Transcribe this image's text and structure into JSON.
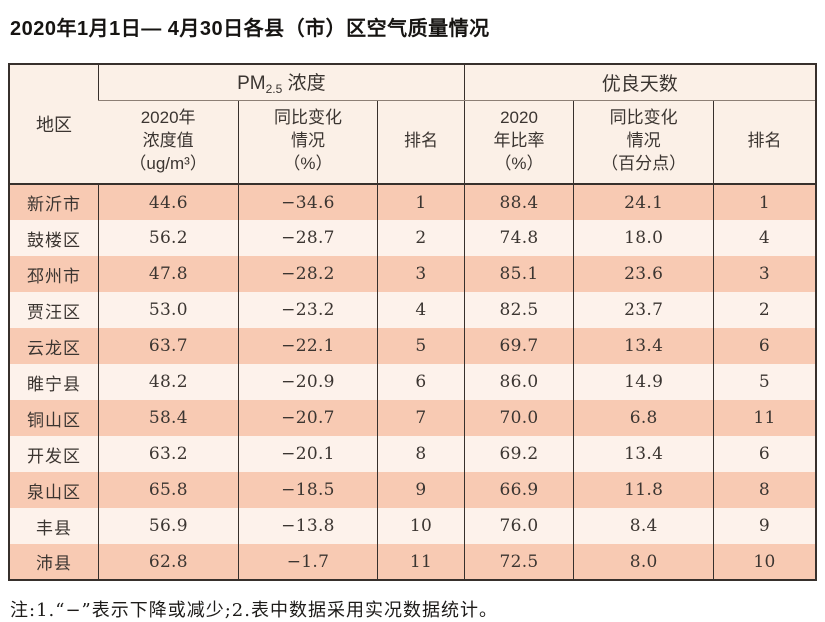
{
  "title": "2020年1月1日— 4月30日各县（市）区空气质量情况",
  "note": "注:1.“−”表示下降或减少;2.表中数据采用实况数据统计。",
  "table": {
    "region_header": "地区",
    "pm_group": {
      "prefix": "PM",
      "sub": "2.5",
      "suffix": " 浓度"
    },
    "good_days_group": "优良天数",
    "sub_headers": {
      "pm_value": "2020年\n浓度值\n（ug/m³）",
      "pm_change": "同比变化\n情况\n（%）",
      "pm_rank": "排名",
      "ratio": "2020\n年比率\n（%）",
      "ratio_change": "同比变化\n情况\n（百分点）",
      "rank": "排名"
    },
    "rows": [
      {
        "region": "新沂市",
        "pm_value": "44.6",
        "pm_change": "−34.6",
        "pm_rank": "1",
        "ratio": "88.4",
        "ratio_change": "24.1",
        "rank": "1"
      },
      {
        "region": "鼓楼区",
        "pm_value": "56.2",
        "pm_change": "−28.7",
        "pm_rank": "2",
        "ratio": "74.8",
        "ratio_change": "18.0",
        "rank": "4"
      },
      {
        "region": "邳州市",
        "pm_value": "47.8",
        "pm_change": "−28.2",
        "pm_rank": "3",
        "ratio": "85.1",
        "ratio_change": "23.6",
        "rank": "3"
      },
      {
        "region": "贾汪区",
        "pm_value": "53.0",
        "pm_change": "−23.2",
        "pm_rank": "4",
        "ratio": "82.5",
        "ratio_change": "23.7",
        "rank": "2"
      },
      {
        "region": "云龙区",
        "pm_value": "63.7",
        "pm_change": "−22.1",
        "pm_rank": "5",
        "ratio": "69.7",
        "ratio_change": "13.4",
        "rank": "6"
      },
      {
        "region": "睢宁县",
        "pm_value": "48.2",
        "pm_change": "−20.9",
        "pm_rank": "6",
        "ratio": "86.0",
        "ratio_change": "14.9",
        "rank": "5"
      },
      {
        "region": "铜山区",
        "pm_value": "58.4",
        "pm_change": "−20.7",
        "pm_rank": "7",
        "ratio": "70.0",
        "ratio_change": "6.8",
        "rank": "11"
      },
      {
        "region": "开发区",
        "pm_value": "63.2",
        "pm_change": "−20.1",
        "pm_rank": "8",
        "ratio": "69.2",
        "ratio_change": "13.4",
        "rank": "6"
      },
      {
        "region": "泉山区",
        "pm_value": "65.8",
        "pm_change": "−18.5",
        "pm_rank": "9",
        "ratio": "66.9",
        "ratio_change": "11.8",
        "rank": "8"
      },
      {
        "region": "丰县",
        "pm_value": "56.9",
        "pm_change": "−13.8",
        "pm_rank": "10",
        "ratio": "76.0",
        "ratio_change": "8.4",
        "rank": "9"
      },
      {
        "region": "沛县",
        "pm_value": "62.8",
        "pm_change": "−1.7",
        "pm_rank": "11",
        "ratio": "72.5",
        "ratio_change": "8.0",
        "rank": "10"
      }
    ]
  }
}
